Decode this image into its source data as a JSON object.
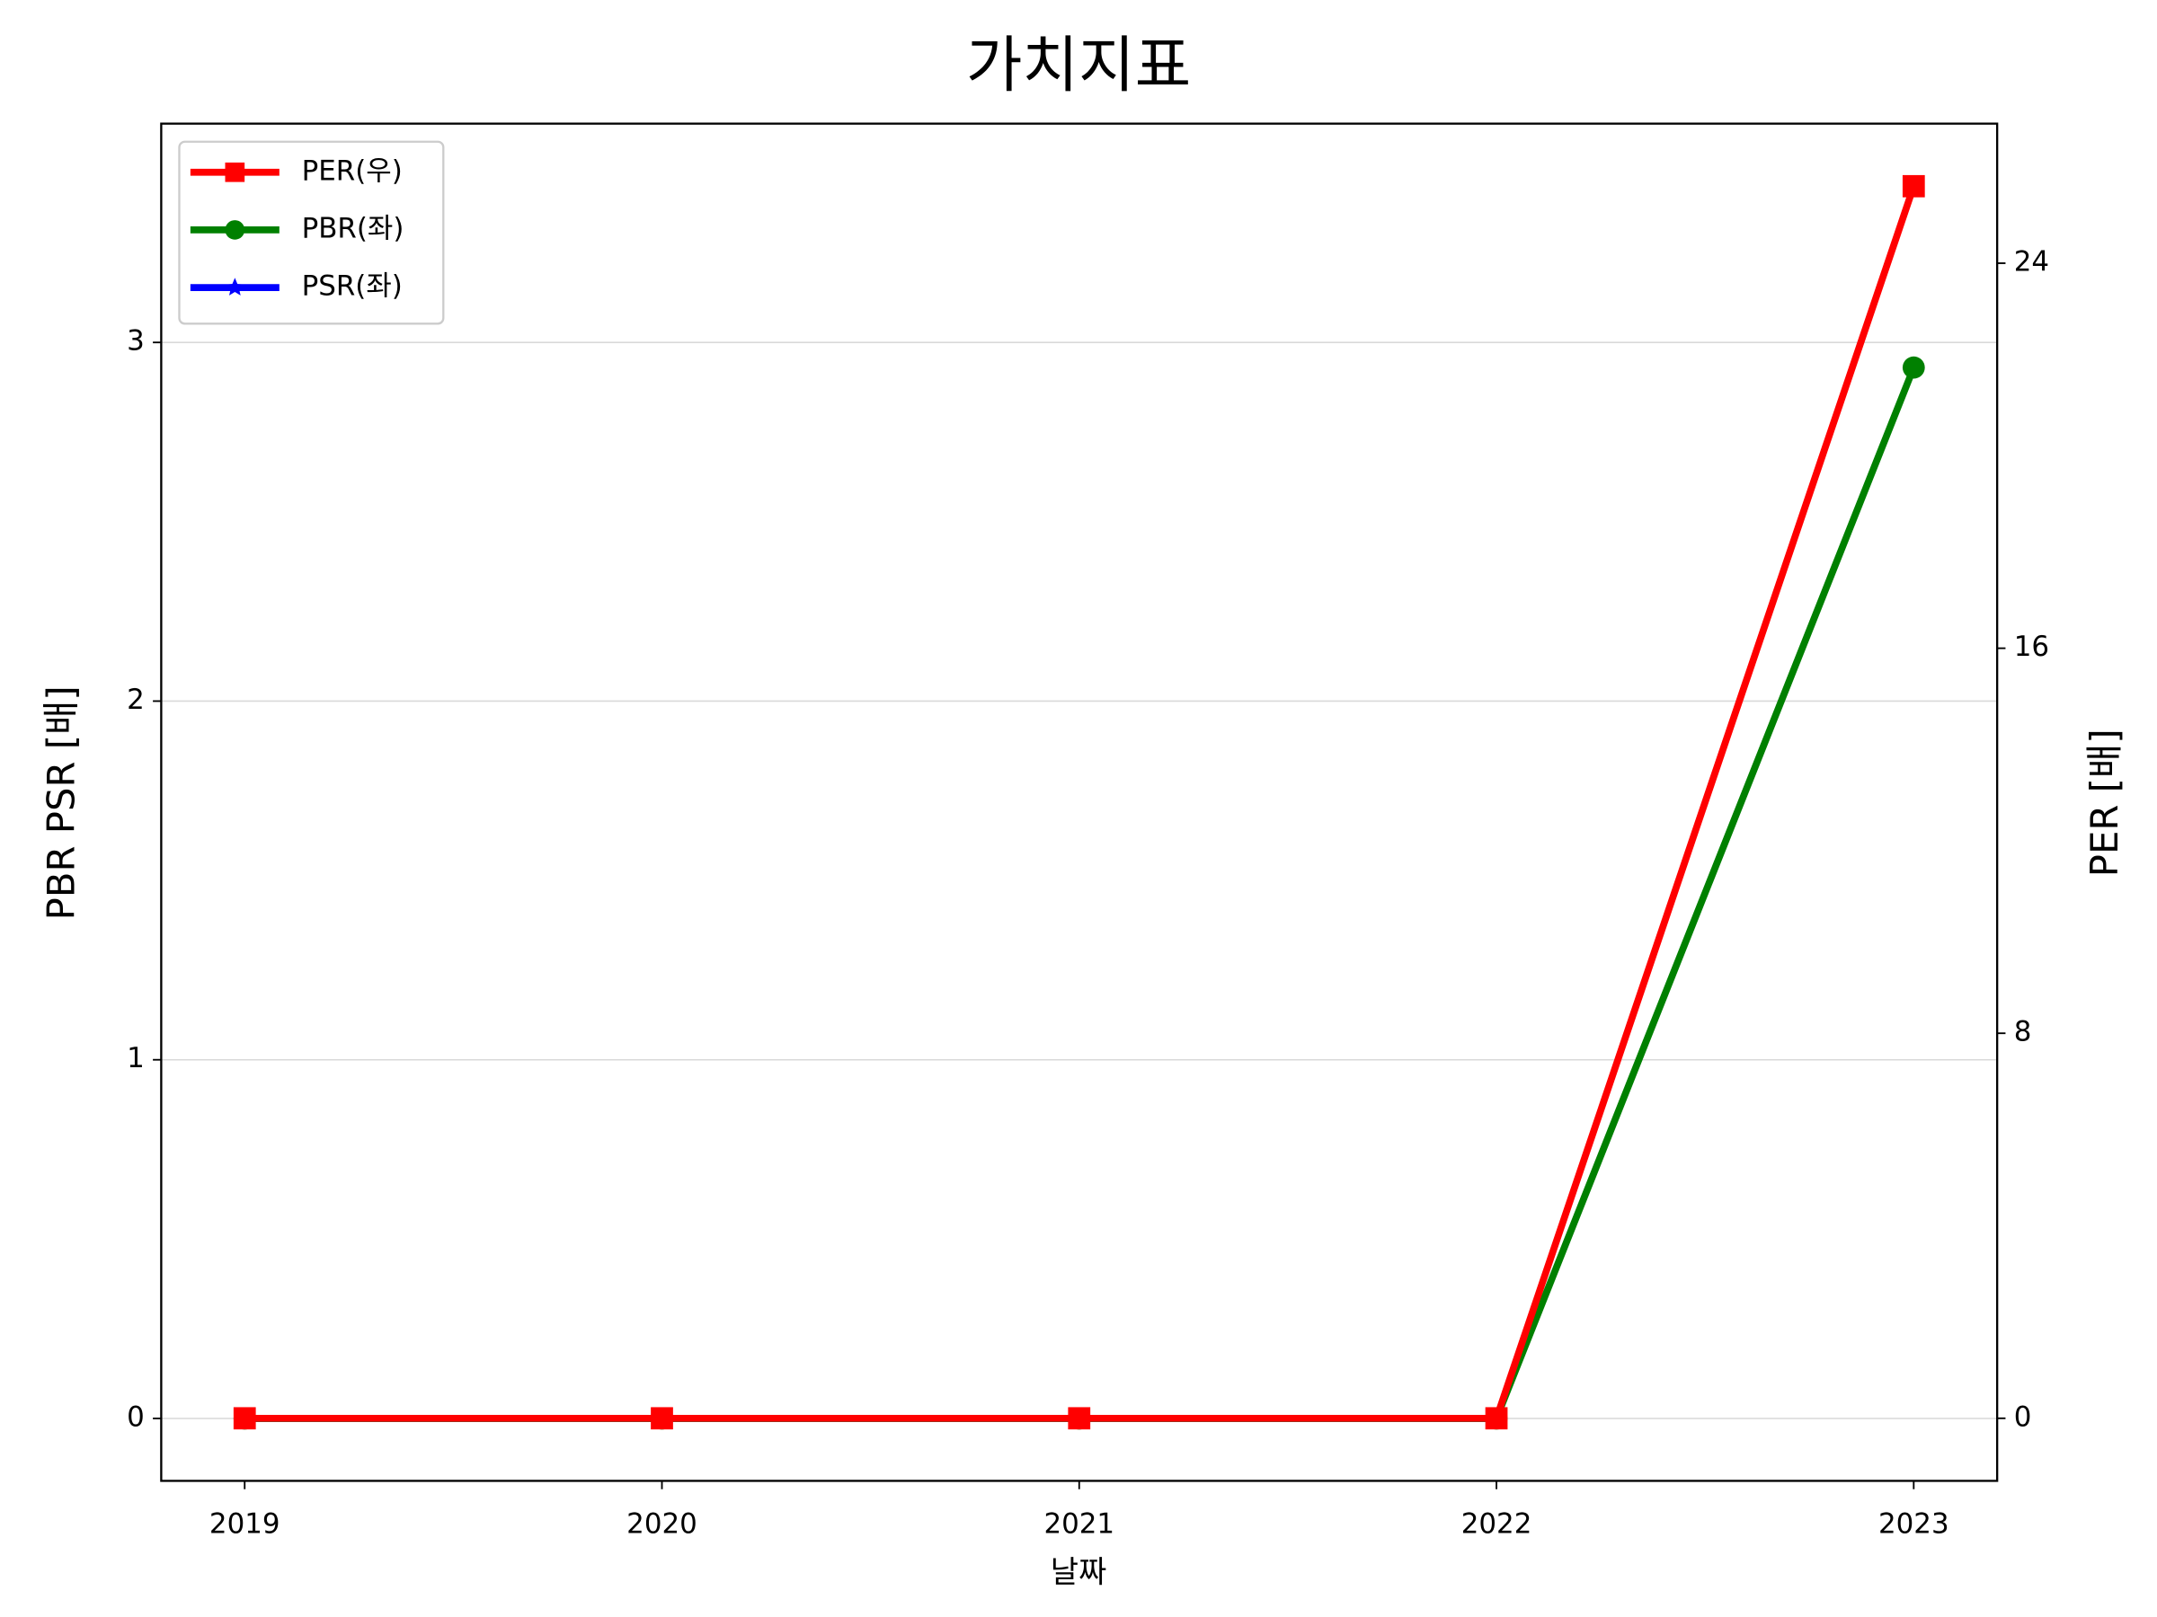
{
  "chart_data": {
    "type": "line",
    "title": "가치지표",
    "xlabel": "날짜",
    "ylabel": "PBR PSR [배]",
    "y2label": "PER [배]",
    "categories": [
      "2019",
      "2020",
      "2021",
      "2022",
      "2023"
    ],
    "series": [
      {
        "name": "PER(우)",
        "color": "#ff0000",
        "marker": "square",
        "axis": "y2",
        "values": [
          0,
          0,
          0,
          0,
          25.6
        ]
      },
      {
        "name": "PBR(좌)",
        "color": "#008000",
        "marker": "circle",
        "values": [
          0,
          0,
          0,
          0,
          2.93
        ]
      },
      {
        "name": "PSR(좌)",
        "color": "#0000ff",
        "marker": "star",
        "values": [
          0,
          0,
          0,
          0,
          null
        ]
      }
    ],
    "ylim": [
      -0.174,
      3.61
    ],
    "yticks": [
      0,
      1,
      2,
      3
    ],
    "y2lim": [
      -1.3,
      26.9
    ],
    "y2ticks": [
      0,
      8,
      16,
      24
    ],
    "ylabel_color": "#008000",
    "y2label_color": "#ff0000",
    "grid": true,
    "legend": "upper left"
  }
}
